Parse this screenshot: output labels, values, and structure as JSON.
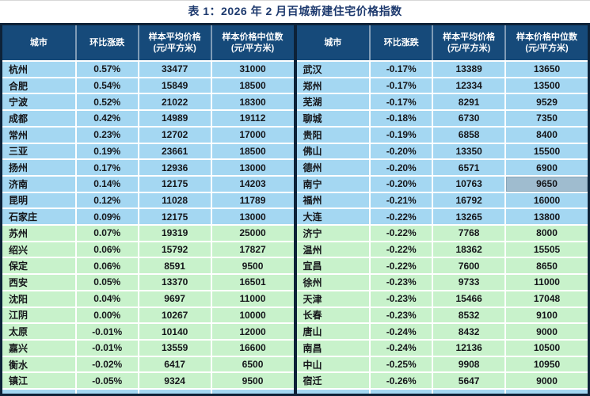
{
  "title": "表 1：2026 年 2 月百城新建住宅价格指数",
  "header": {
    "city": "城市",
    "mom_change": "环比涨跌",
    "avg_price": "样本平均价格",
    "median_price": "样本价格中位数",
    "unit": "(元/平方米)"
  },
  "colors": {
    "title_color": "#1e3a6e",
    "header_bg": "#164a7a",
    "row_blue": "#a4d7f2",
    "row_green": "#c8f2cb",
    "selected_cell": "#9fbccf",
    "border_dark": "#0d2238"
  },
  "table": {
    "left_rows": [
      {
        "city": "杭州",
        "change": "0.57%",
        "avg": "33477",
        "median": "31000",
        "section": "blue"
      },
      {
        "city": "合肥",
        "change": "0.54%",
        "avg": "15849",
        "median": "18500",
        "section": "blue"
      },
      {
        "city": "宁波",
        "change": "0.52%",
        "avg": "21022",
        "median": "18300",
        "section": "blue"
      },
      {
        "city": "成都",
        "change": "0.42%",
        "avg": "14989",
        "median": "19112",
        "section": "blue"
      },
      {
        "city": "常州",
        "change": "0.23%",
        "avg": "12702",
        "median": "17000",
        "section": "blue"
      },
      {
        "city": "三亚",
        "change": "0.19%",
        "avg": "23661",
        "median": "18500",
        "section": "blue"
      },
      {
        "city": "扬州",
        "change": "0.17%",
        "avg": "12936",
        "median": "13000",
        "section": "blue"
      },
      {
        "city": "济南",
        "change": "0.14%",
        "avg": "12175",
        "median": "14203",
        "section": "blue"
      },
      {
        "city": "昆明",
        "change": "0.12%",
        "avg": "11028",
        "median": "11789",
        "section": "blue"
      },
      {
        "city": "石家庄",
        "change": "0.09%",
        "avg": "12175",
        "median": "13000",
        "section": "blue"
      },
      {
        "city": "苏州",
        "change": "0.07%",
        "avg": "19319",
        "median": "25000",
        "section": "green"
      },
      {
        "city": "绍兴",
        "change": "0.06%",
        "avg": "15792",
        "median": "17827",
        "section": "green"
      },
      {
        "city": "保定",
        "change": "0.06%",
        "avg": "8591",
        "median": "9500",
        "section": "green"
      },
      {
        "city": "西安",
        "change": "0.05%",
        "avg": "13370",
        "median": "16501",
        "section": "green"
      },
      {
        "city": "沈阳",
        "change": "0.04%",
        "avg": "9697",
        "median": "11000",
        "section": "green"
      },
      {
        "city": "江阴",
        "change": "0.00%",
        "avg": "10267",
        "median": "10000",
        "section": "green"
      },
      {
        "city": "太原",
        "change": "-0.01%",
        "avg": "10140",
        "median": "12000",
        "section": "green"
      },
      {
        "city": "嘉兴",
        "change": "-0.01%",
        "avg": "13559",
        "median": "16600",
        "section": "green"
      },
      {
        "city": "衡水",
        "change": "-0.02%",
        "avg": "6417",
        "median": "6500",
        "section": "green"
      },
      {
        "city": "镇江",
        "change": "-0.05%",
        "avg": "9324",
        "median": "9500",
        "section": "green"
      }
    ],
    "right_rows": [
      {
        "city": "武汉",
        "change": "-0.17%",
        "avg": "13389",
        "median": "13650",
        "section": "blue"
      },
      {
        "city": "郑州",
        "change": "-0.17%",
        "avg": "12334",
        "median": "13500",
        "section": "blue"
      },
      {
        "city": "芜湖",
        "change": "-0.17%",
        "avg": "8291",
        "median": "9529",
        "section": "blue"
      },
      {
        "city": "聊城",
        "change": "-0.18%",
        "avg": "6730",
        "median": "7350",
        "section": "blue"
      },
      {
        "city": "贵阳",
        "change": "-0.19%",
        "avg": "6858",
        "median": "8400",
        "section": "blue"
      },
      {
        "city": "佛山",
        "change": "-0.20%",
        "avg": "13350",
        "median": "15500",
        "section": "blue"
      },
      {
        "city": "德州",
        "change": "-0.20%",
        "avg": "6571",
        "median": "6900",
        "section": "blue"
      },
      {
        "city": "南宁",
        "change": "-0.20%",
        "avg": "10763",
        "median": "9650",
        "section": "blue",
        "median_selected": true
      },
      {
        "city": "福州",
        "change": "-0.21%",
        "avg": "16792",
        "median": "16000",
        "section": "blue"
      },
      {
        "city": "大连",
        "change": "-0.22%",
        "avg": "13265",
        "median": "13800",
        "section": "blue"
      },
      {
        "city": "济宁",
        "change": "-0.22%",
        "avg": "7768",
        "median": "8000",
        "section": "green"
      },
      {
        "city": "温州",
        "change": "-0.22%",
        "avg": "18362",
        "median": "15505",
        "section": "green"
      },
      {
        "city": "宜昌",
        "change": "-0.22%",
        "avg": "7600",
        "median": "8650",
        "section": "green"
      },
      {
        "city": "徐州",
        "change": "-0.23%",
        "avg": "9733",
        "median": "11000",
        "section": "green"
      },
      {
        "city": "天津",
        "change": "-0.23%",
        "avg": "15466",
        "median": "17048",
        "section": "green"
      },
      {
        "city": "长春",
        "change": "-0.23%",
        "avg": "8532",
        "median": "9100",
        "section": "green"
      },
      {
        "city": "唐山",
        "change": "-0.24%",
        "avg": "8432",
        "median": "9000",
        "section": "green"
      },
      {
        "city": "南昌",
        "change": "-0.24%",
        "avg": "12136",
        "median": "10500",
        "section": "green"
      },
      {
        "city": "中山",
        "change": "-0.25%",
        "avg": "9908",
        "median": "10950",
        "section": "green"
      },
      {
        "city": "宿迁",
        "change": "-0.26%",
        "avg": "5647",
        "median": "9000",
        "section": "green"
      }
    ]
  }
}
